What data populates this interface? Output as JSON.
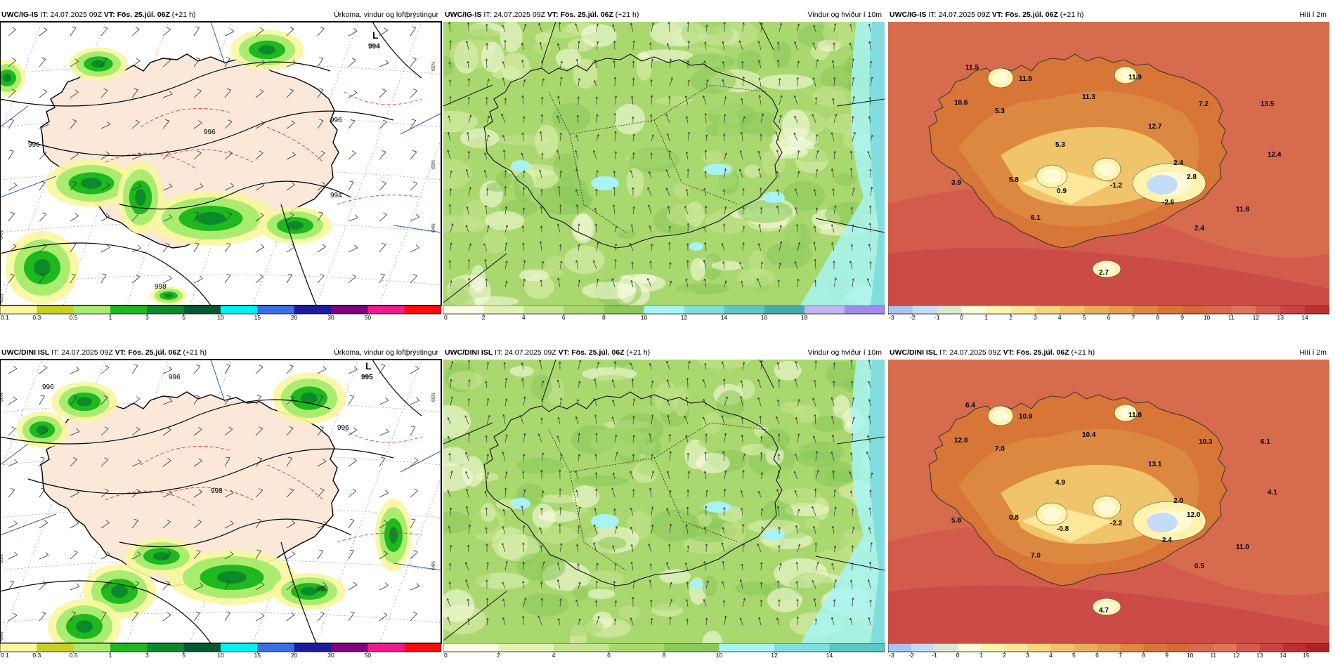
{
  "rows": [
    {
      "model": "UWC/IG-IS",
      "precip_max_label": "994",
      "panels": [
        {
          "type": "precip",
          "header": {
            "model": "UWC/IG-IS",
            "it_prefix": "IT:",
            "it": "24.07.2025 09Z",
            "vt_prefix": "VT:",
            "vt": "Fös. 25.júl. 06Z",
            "lead": "(+21 h)",
            "title": "Úrkoma, vindur og loftþrýstingur"
          },
          "low_letter": "L",
          "low_value": "994",
          "isobar_labels": [
            "996",
            "996",
            "996",
            "994",
            "998"
          ],
          "lat_labels": [
            "65N",
            "64N",
            "63N",
            "65N",
            "64N"
          ],
          "colorbar": {
            "ticks": [
              "0.1",
              "0.3",
              "0.5",
              "1",
              "3",
              "5",
              "10",
              "15",
              "20",
              "30",
              "50"
            ],
            "colors": [
              "#f7f79e",
              "#c8cf26",
              "#a9ec6f",
              "#1fb81f",
              "#0b8a2b",
              "#015a36",
              "#00f2f2",
              "#3b6fe8",
              "#1c1ca0",
              "#800080",
              "#ee1b8d",
              "#ff0a0a"
            ]
          }
        },
        {
          "type": "wind",
          "header": {
            "model": "UWC/IG-IS",
            "it_prefix": "IT:",
            "it": "24.07.2025 09Z",
            "vt_prefix": "VT:",
            "vt": "Fös. 25.júl. 06Z",
            "lead": "(+21 h)",
            "title": "Vindur og hviður í 10m"
          },
          "colorbar": {
            "ticks": [
              "0",
              "2",
              "4",
              "6",
              "8",
              "10",
              "12",
              "14",
              "16",
              "18"
            ],
            "colors": [
              "#fdfde7",
              "#e2f2b5",
              "#c6e590",
              "#a9d86f",
              "#8bc95a",
              "#a8f4f4",
              "#82dede",
              "#5ec6c6",
              "#44acac",
              "#c3b3f3",
              "#a38ae8"
            ]
          }
        },
        {
          "type": "temp",
          "header": {
            "model": "UWC/IG-IS",
            "it_prefix": "IT:",
            "it": "24.07.2025 09Z",
            "vt_prefix": "VT:",
            "vt": "Fös. 25.júl. 06Z",
            "lead": "(+21 h)",
            "title": "Hiti í 2m"
          },
          "temp_labels": [
            "11.5",
            "11.5",
            "10.6",
            "5.3",
            "11.3",
            "11.9",
            "7.2",
            "13.5",
            "12.7",
            "5.3",
            "2.4",
            "12.4",
            "3.9",
            "5.8",
            "0.9",
            "-1.2",
            "-2.6",
            "2.8",
            "11.8",
            "6.1",
            "2.4",
            "2.7"
          ],
          "colorbar": {
            "ticks": [
              "-3",
              "-2",
              "-1",
              "0",
              "1",
              "2",
              "3",
              "4",
              "5",
              "6",
              "7",
              "8",
              "9",
              "10",
              "11",
              "12",
              "13",
              "14"
            ],
            "colors": [
              "#a6c6ee",
              "#c5dcf6",
              "#d9e9d4",
              "#fffbd9",
              "#fff3b0",
              "#fde89a",
              "#f6d67f",
              "#f0c46a",
              "#e9b05a",
              "#e29c4c",
              "#dc8840",
              "#d77637",
              "#d46a37",
              "#d66b4e",
              "#de7657",
              "#d35b4b",
              "#c84444",
              "#bc3030"
            ]
          }
        }
      ]
    },
    {
      "model": "UWC/DINI ISL",
      "panels": [
        {
          "type": "precip",
          "header": {
            "model": "UWC/DINI ISL",
            "it_prefix": "IT:",
            "it": "24.07.2025 09Z",
            "vt_prefix": "VT:",
            "vt": "Fös. 25.júl. 06Z",
            "lead": "(+21 h)",
            "title": "Úrkoma, vindur og loftþrýstingur"
          },
          "low_letter": "L",
          "low_value": "995",
          "isobar_labels": [
            "996",
            "996",
            "996",
            "998",
            "998"
          ],
          "lat_labels": [
            "66N",
            "65N",
            "64N",
            "65N",
            "64N"
          ],
          "colorbar": {
            "ticks": [
              "0.1",
              "0.3",
              "0.5",
              "1",
              "3",
              "5",
              "10",
              "15",
              "20",
              "30",
              "50"
            ],
            "colors": [
              "#f7f79e",
              "#c8cf26",
              "#a9ec6f",
              "#1fb81f",
              "#0b8a2b",
              "#015a36",
              "#00f2f2",
              "#3b6fe8",
              "#1c1ca0",
              "#800080",
              "#ee1b8d",
              "#ff0a0a"
            ]
          }
        },
        {
          "type": "wind",
          "header": {
            "model": "UWC/DINI ISL",
            "it_prefix": "IT:",
            "it": "24.07.2025 09Z",
            "vt_prefix": "VT:",
            "vt": "Fös. 25.júl. 06Z",
            "lead": "(+21 h)",
            "title": "Vindur og hviður í 10m"
          },
          "colorbar": {
            "ticks": [
              "0",
              "2",
              "4",
              "6",
              "8",
              "10",
              "12",
              "14"
            ],
            "colors": [
              "#fdfde7",
              "#e2f2b5",
              "#c6e590",
              "#a9d86f",
              "#8bc95a",
              "#a8f4f4",
              "#82dede",
              "#5ec6c6"
            ]
          }
        },
        {
          "type": "temp",
          "header": {
            "model": "UWC/DINI ISL",
            "it_prefix": "IT:",
            "it": "24.07.2025 09Z",
            "vt_prefix": "VT:",
            "vt": "Fös. 25.júl. 06Z",
            "lead": "(+21 h)",
            "title": "Hiti í 2m"
          },
          "temp_labels": [
            "6.4",
            "10.9",
            "12.0",
            "7.0",
            "10.4",
            "11.8",
            "10.3",
            "6.1",
            "13.1",
            "4.9",
            "2.0",
            "4.1",
            "5.8",
            "0.8",
            "-0.8",
            "-2.2",
            "2.4",
            "12.0",
            "11.0",
            "7.0",
            "0.5",
            "4.7"
          ],
          "colorbar": {
            "ticks": [
              "-3",
              "-2",
              "-1",
              "0",
              "1",
              "2",
              "3",
              "4",
              "5",
              "6",
              "7",
              "8",
              "9",
              "10",
              "11",
              "12",
              "13",
              "14",
              "15"
            ],
            "colors": [
              "#a6c6ee",
              "#c5dcf6",
              "#d9e9d4",
              "#fffbd9",
              "#fff3b0",
              "#fde89a",
              "#f6d67f",
              "#f0c46a",
              "#e9b05a",
              "#e29c4c",
              "#dc8840",
              "#d77637",
              "#d46a37",
              "#d66b4e",
              "#de7657",
              "#d35b4b",
              "#c84444",
              "#bc3030",
              "#b02222"
            ]
          }
        }
      ]
    }
  ]
}
